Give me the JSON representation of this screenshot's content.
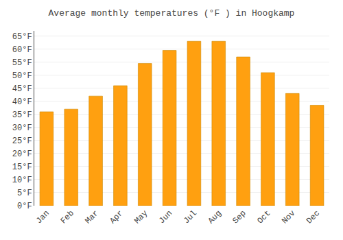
{
  "chart_data": {
    "type": "bar",
    "title": "Average monthly temperatures (°F ) in Hoogkamp",
    "categories": [
      "Jan",
      "Feb",
      "Mar",
      "Apr",
      "May",
      "Jun",
      "Jul",
      "Aug",
      "Sep",
      "Oct",
      "Nov",
      "Dec"
    ],
    "values": [
      36,
      37,
      42,
      46,
      54.5,
      59.5,
      63,
      63,
      57,
      51,
      43,
      38.5
    ],
    "color": "#FFA010",
    "ylim": [
      0,
      67
    ],
    "yticks": [
      {
        "value": 0,
        "label": "0°F"
      },
      {
        "value": 5,
        "label": "5°F"
      },
      {
        "value": 10,
        "label": "10°F"
      },
      {
        "value": 15,
        "label": "15°F"
      },
      {
        "value": 20,
        "label": "20°F"
      },
      {
        "value": 25,
        "label": "25°F"
      },
      {
        "value": 30,
        "label": "30°F"
      },
      {
        "value": 35,
        "label": "35°F"
      },
      {
        "value": 40,
        "label": "40°F"
      },
      {
        "value": 45,
        "label": "45°F"
      },
      {
        "value": 50,
        "label": "50°F"
      },
      {
        "value": 55,
        "label": "55°F"
      },
      {
        "value": 60,
        "label": "60°F"
      },
      {
        "value": 65,
        "label": "65°F"
      }
    ],
    "grid": true
  }
}
